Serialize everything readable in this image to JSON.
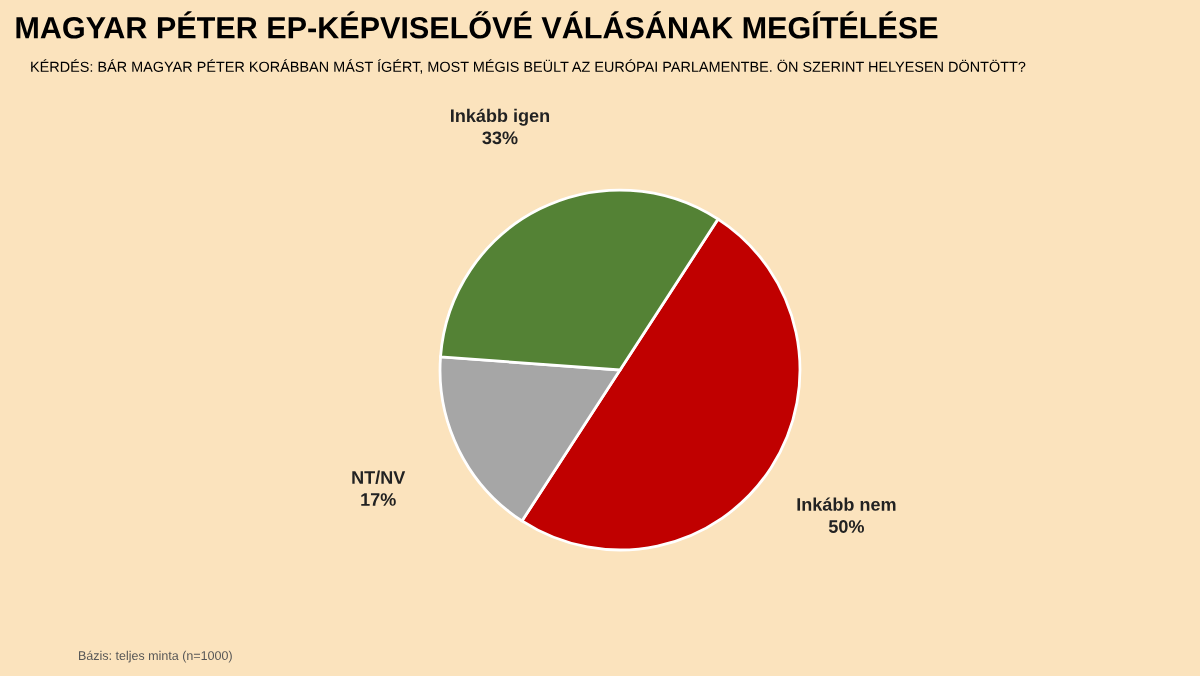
{
  "chart_data": {
    "type": "pie",
    "title": "MAGYAR PÉTER EP-KÉPVISELŐVÉ VÁLÁSÁNAK MEGÍTÉLÉSE",
    "subtitle": "KÉRDÉS: BÁR MAGYAR PÉTER KORÁBBAN MÁST ÍGÉRT, MOST MÉGIS BEÜLT AZ EURÓPAI PARLAMENTBE. ÖN SZERINT HELYESEN DÖNTÖTT?",
    "categories": [
      "Inkább nem",
      "NT/NV",
      "Inkább igen"
    ],
    "values": [
      50,
      17,
      33
    ],
    "colors": [
      "#c00000",
      "#a6a6a6",
      "#548235"
    ],
    "value_labels": [
      "50%",
      "17%",
      "33%"
    ],
    "legend": false,
    "annotations": [
      "Bázis: teljes minta (n=1000)"
    ]
  }
}
